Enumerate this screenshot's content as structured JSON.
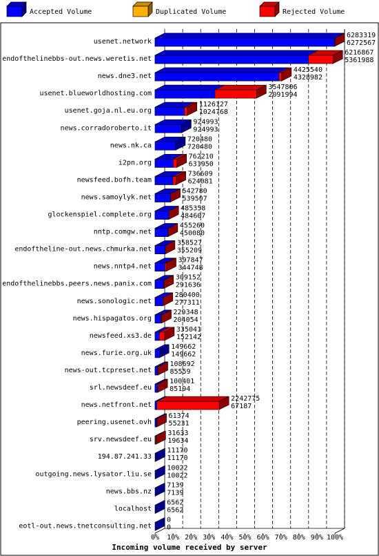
{
  "chart_data": {
    "type": "bar",
    "orientation": "horizontal",
    "stacked": "overlay-3d",
    "title": "",
    "xlabel": "Incoming volume received by server",
    "ylabel": "",
    "xlim": [
      0,
      100
    ],
    "x_ticks": [
      "0%",
      "10%",
      "20%",
      "30%",
      "40%",
      "50%",
      "60%",
      "70%",
      "80%",
      "90%",
      "100%"
    ],
    "grid": "vertical dashed",
    "legend_placement": "top",
    "legend": [
      {
        "name": "Accepted Volume",
        "color": "#0000ff"
      },
      {
        "name": "Duplicated Volume",
        "color": "#ffb000"
      },
      {
        "name": "Rejected Volume",
        "color": "#ff0000"
      }
    ],
    "rows": [
      {
        "server": "usenet.network",
        "total": 6283319,
        "accepted": 6272567,
        "type": "accepted"
      },
      {
        "server": "endofthelinebbs-out.news.weretis.net",
        "total": 6216867,
        "accepted": 5361988,
        "type": "accepted"
      },
      {
        "server": "news.dne3.net",
        "total": 4425540,
        "accepted": 4328982,
        "type": "accepted"
      },
      {
        "server": "usenet.blueworldhosting.com",
        "total": 3547806,
        "accepted": 2091994,
        "type": "accepted"
      },
      {
        "server": "usenet.goja.nl.eu.org",
        "total": 1126127,
        "accepted": 1024768,
        "type": "accepted"
      },
      {
        "server": "news.corradoroberto.it",
        "total": 924993,
        "accepted": 924993,
        "type": "accepted"
      },
      {
        "server": "news.nk.ca",
        "total": 720480,
        "accepted": 720480,
        "type": "accepted"
      },
      {
        "server": "i2pn.org",
        "total": 762210,
        "accepted": 631950,
        "type": "accepted"
      },
      {
        "server": "newsfeed.bofh.team",
        "total": 736609,
        "accepted": 624081,
        "type": "accepted"
      },
      {
        "server": "news.samoylyk.net",
        "total": 542780,
        "accepted": 539507,
        "type": "accepted"
      },
      {
        "server": "glockenspiel.complete.org",
        "total": 485358,
        "accepted": 484607,
        "type": "accepted"
      },
      {
        "server": "nntp.comgw.net",
        "total": 455260,
        "accepted": 450080,
        "type": "accepted"
      },
      {
        "server": "endoftheline-out.news.chmurka.net",
        "total": 358527,
        "accepted": 355209,
        "type": "accepted"
      },
      {
        "server": "news.nntp4.net",
        "total": 397847,
        "accepted": 344748,
        "type": "accepted"
      },
      {
        "server": "endofthelinebbs.peers.news.panix.com",
        "total": 309152,
        "accepted": 291636,
        "type": "accepted"
      },
      {
        "server": "news.sonologic.net",
        "total": 280400,
        "accepted": 277311,
        "type": "accepted"
      },
      {
        "server": "news.hispagatos.org",
        "total": 229348,
        "accepted": 204054,
        "type": "accepted"
      },
      {
        "server": "newsfeed.xs3.de",
        "total": 335041,
        "accepted": 152142,
        "type": "accepted"
      },
      {
        "server": "news.furie.org.uk",
        "total": 149662,
        "accepted": 149662,
        "type": "accepted"
      },
      {
        "server": "news-out.tcpreset.net",
        "total": 108692,
        "accepted": 85559,
        "type": "accepted"
      },
      {
        "server": "srl.newsdeef.eu",
        "total": 100401,
        "accepted": 85194,
        "type": "accepted"
      },
      {
        "server": "news.netfront.net",
        "total": 2242775,
        "accepted": 67187,
        "type": "accepted"
      },
      {
        "server": "peering.usenet.ovh",
        "total": 61374,
        "accepted": 55231,
        "type": "accepted"
      },
      {
        "server": "srv.newsdeef.eu",
        "total": 31633,
        "accepted": 19634,
        "type": "duplicated"
      },
      {
        "server": "194.87.241.33",
        "total": 11170,
        "accepted": 11170,
        "type": "accepted"
      },
      {
        "server": "outgoing.news.lysator.liu.se",
        "total": 10022,
        "accepted": 10022,
        "type": "accepted"
      },
      {
        "server": "news.bbs.nz",
        "total": 7139,
        "accepted": 7139,
        "type": "accepted"
      },
      {
        "server": "localhost",
        "total": 6562,
        "accepted": 6562,
        "type": "accepted"
      },
      {
        "server": "eotl-out.news.tnetconsulting.net",
        "total": 0,
        "accepted": 0,
        "type": "accepted"
      }
    ]
  }
}
